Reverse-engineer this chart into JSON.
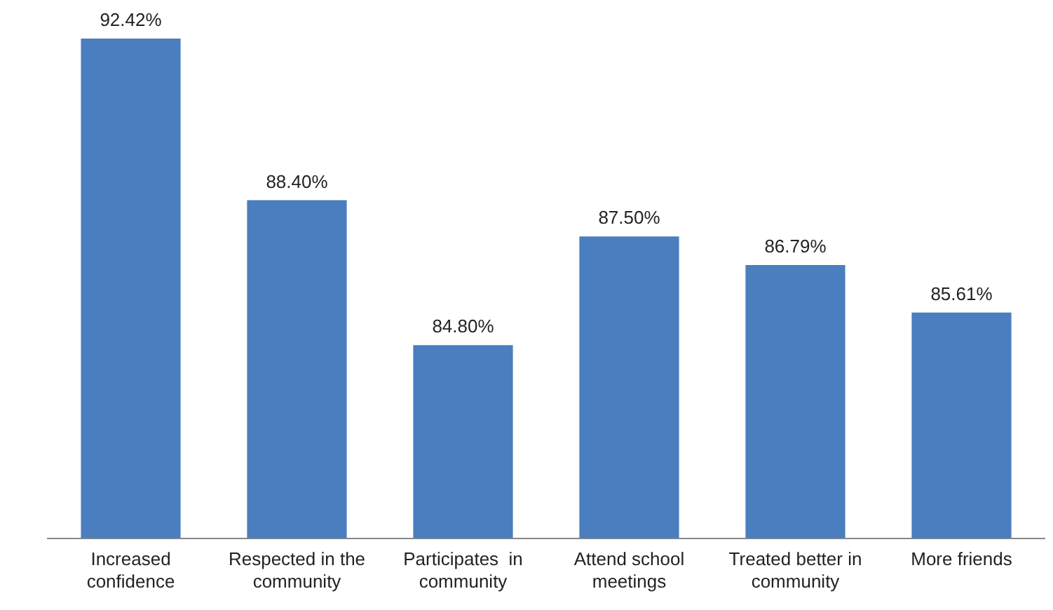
{
  "chart_data": {
    "type": "bar",
    "categories": [
      "Increased confidence",
      "Respected in the community",
      "Participates  in community",
      "Attend school meetings",
      "Treated better in community",
      "More friends"
    ],
    "values": [
      92.42,
      88.4,
      84.8,
      87.5,
      86.79,
      85.61
    ],
    "value_labels": [
      "92.42%",
      "88.40%",
      "84.80%",
      "87.50%",
      "86.79%",
      "85.61%"
    ],
    "color": "#4a7ebf",
    "grid": false,
    "legend": false
  }
}
